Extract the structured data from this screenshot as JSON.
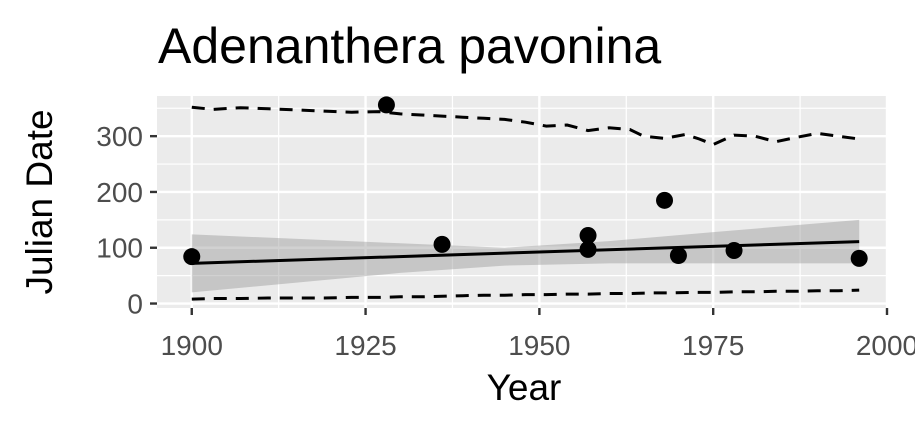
{
  "chart_data": {
    "type": "scatter",
    "title": "Adenanthera pavonina",
    "xlabel": "Year",
    "ylabel": "Julian Date",
    "xlim": [
      1895,
      2000
    ],
    "ylim": [
      -8,
      372
    ],
    "x_ticks": [
      1900,
      1925,
      1950,
      1975,
      2000
    ],
    "x_tick_labels": [
      "1900",
      "1925",
      "1950",
      "1975",
      "2000"
    ],
    "y_ticks": [
      0,
      100,
      200,
      300
    ],
    "y_tick_labels": [
      "0",
      "100",
      "200",
      "300"
    ],
    "grid": true,
    "legend": "none",
    "panel_background": "#ebebeb",
    "grid_color": "#ffffff",
    "point_color": "#000000",
    "fit_line_color": "#000000",
    "ribbon_color": "#999999",
    "points": [
      {
        "x": 1900,
        "y": 84
      },
      {
        "x": 1928,
        "y": 356
      },
      {
        "x": 1936,
        "y": 106
      },
      {
        "x": 1957,
        "y": 122
      },
      {
        "x": 1957,
        "y": 97
      },
      {
        "x": 1968,
        "y": 185
      },
      {
        "x": 1970,
        "y": 86
      },
      {
        "x": 1978,
        "y": 95
      },
      {
        "x": 1996,
        "y": 81
      }
    ],
    "trend_line": {
      "x": [
        1900,
        1996
      ],
      "y": [
        72,
        111
      ]
    },
    "confidence_band": {
      "x": [
        1900,
        1930,
        1945,
        1960,
        1975,
        1996
      ],
      "lower": [
        20,
        55,
        68,
        72,
        72,
        72
      ],
      "upper": [
        124,
        108,
        100,
        112,
        128,
        150
      ]
    },
    "upper_quantile": {
      "x": [
        1900,
        1903,
        1907,
        1911,
        1915,
        1919,
        1923,
        1927,
        1930,
        1933,
        1936,
        1939,
        1942,
        1945,
        1948,
        1951,
        1954,
        1957,
        1960,
        1963,
        1965,
        1968,
        1971,
        1973,
        1975,
        1978,
        1981,
        1984,
        1987,
        1990,
        1993,
        1996
      ],
      "y": [
        352,
        348,
        351,
        349,
        347,
        345,
        343,
        344,
        340,
        338,
        336,
        334,
        332,
        330,
        325,
        318,
        320,
        310,
        315,
        312,
        300,
        296,
        303,
        295,
        285,
        302,
        300,
        290,
        298,
        305,
        300,
        295
      ]
    },
    "lower_quantile": {
      "x": [
        1900,
        1903,
        1907,
        1911,
        1915,
        1919,
        1923,
        1927,
        1930,
        1933,
        1936,
        1939,
        1942,
        1945,
        1948,
        1951,
        1954,
        1957,
        1960,
        1963,
        1966,
        1969,
        1972,
        1975,
        1978,
        1981,
        1984,
        1987,
        1990,
        1993,
        1996
      ],
      "y": [
        8,
        9,
        9,
        10,
        10,
        10,
        11,
        11,
        12,
        12,
        13,
        14,
        15,
        15,
        16,
        16,
        17,
        17,
        18,
        18,
        19,
        19,
        20,
        20,
        21,
        21,
        22,
        22,
        23,
        23,
        24
      ]
    }
  }
}
